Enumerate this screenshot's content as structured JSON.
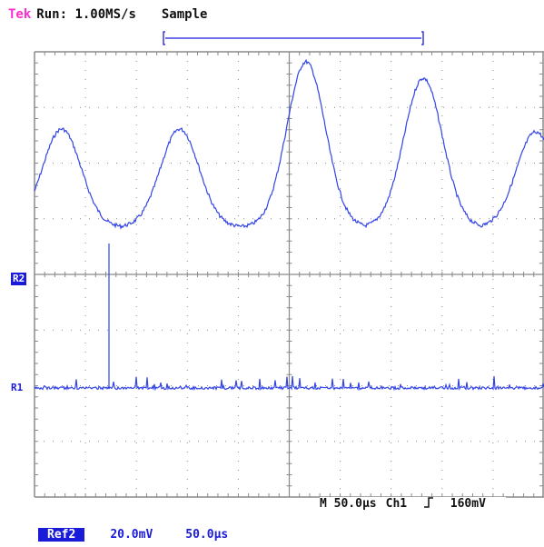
{
  "header": {
    "brand": "Tek",
    "run_status": "Run: 1.00MS/s",
    "mode": "Sample"
  },
  "markers": {
    "ref2": "R2",
    "ref1": "R1"
  },
  "readout": {
    "timebase": "M 50.0µs",
    "trigger_source": "Ch1",
    "trigger_slope_icon": "rising-edge-icon",
    "trigger_level": "160mV"
  },
  "footer": {
    "reference": "Ref2",
    "volts_div": "20.0mV",
    "time_div": "50.0µs"
  },
  "colors": {
    "trace": "#3344e6",
    "grid": "#8a8a8a",
    "brand": "#ff2bd0",
    "highlight": "#1a1ad9"
  }
}
